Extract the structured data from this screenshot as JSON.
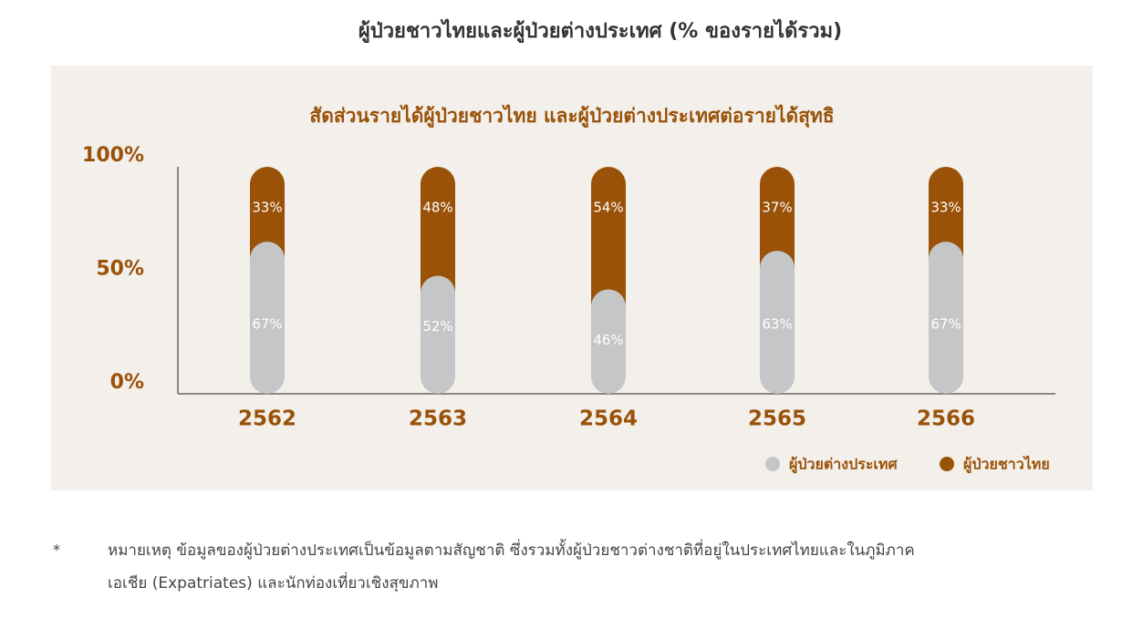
{
  "title": "ผู้ป่วยชาวไทยและผู้ป่วยต่างประเทศ (% ของรายได้รวม)",
  "chart_data": {
    "type": "bar",
    "stacked": true,
    "title": "สัดส่วนรายได้ผู้ป่วยชาวไทย และผู้ป่วยต่างประเทศต่อรายได้สุทธิ",
    "categories": [
      "2562",
      "2563",
      "2564",
      "2565",
      "2566"
    ],
    "series": [
      {
        "name": "ผู้ป่วยต่างประเทศ",
        "color": "#c4c6c8",
        "values": [
          67,
          52,
          46,
          63,
          67
        ],
        "value_labels": [
          "67%",
          "52%",
          "46%",
          "63%",
          "67%"
        ]
      },
      {
        "name": "ผู้ป่วยชาวไทย",
        "color": "#9a5209",
        "values": [
          33,
          48,
          54,
          37,
          33
        ],
        "value_labels": [
          "33%",
          "48%",
          "54%",
          "37%",
          "33%"
        ]
      }
    ],
    "ylim": [
      0,
      100
    ],
    "yticks": [
      {
        "value": 0,
        "label": "0%"
      },
      {
        "value": 50,
        "label": "50%"
      },
      {
        "value": 100,
        "label": "100%"
      }
    ],
    "legend": "bottom-right"
  },
  "footnote": {
    "marker": "*",
    "lines": [
      "หมายเหตุ ข้อมูลของผู้ป่วยต่างประเทศเป็นข้อมูลตามสัญชาติ ซึ่งรวมทั้งผู้ป่วยชาวต่างชาติที่อยู่ในประเทศไทยและในภูมิภาค",
      "เอเชีย (Expatriates) และนักท่องเที่ยวเชิงสุขภาพ"
    ]
  }
}
